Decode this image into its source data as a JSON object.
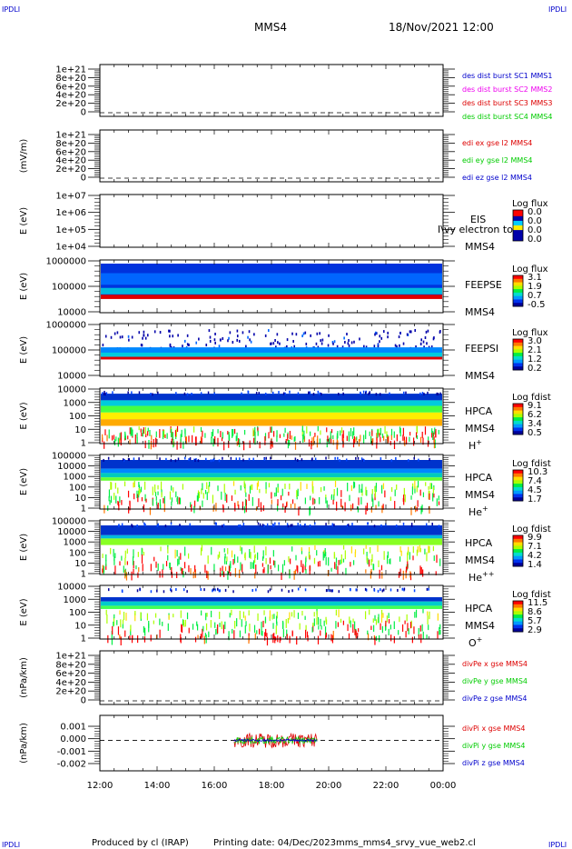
{
  "header": {
    "corner_tl": "IPDLI",
    "corner_tr": "IPDLI",
    "corner_bl": "IPDLI",
    "corner_br": "IPDLI",
    "title": "MMS4",
    "date": "18/Nov/2021 12:00"
  },
  "footer": {
    "produced_by": "Produced by cl (IRAP)",
    "printing_date": "Printing date: 04/Dec/2023",
    "script_name": "mms_mms4_srvy_vue_web2.cl"
  },
  "colors": {
    "red": "#dd0000",
    "green": "#00cc00",
    "blue": "#0000cc",
    "magenta": "#ee00ee"
  },
  "chart_data": {
    "type": "heatmap",
    "x_axis": {
      "tick_labels": [
        "12:00",
        "14:00",
        "16:00",
        "18:00",
        "20:00",
        "22:00",
        "00:00"
      ],
      "range_hours": [
        12,
        24
      ]
    },
    "panels": [
      {
        "id": "p1",
        "type": "line",
        "ylabel": "",
        "ticks": [
          "1e+21",
          "8e+20",
          "6e+20",
          "4e+20",
          "2e+20",
          "0"
        ],
        "legend": [
          {
            "text": "des dist burst SC1 MMS1",
            "color": "#0000cc"
          },
          {
            "text": "des dist burst SC2 MMS2",
            "color": "#ee00ee"
          },
          {
            "text": "des dist burst SC3 MMS3",
            "color": "#dd0000"
          },
          {
            "text": "des dist burst SC4 MMS4",
            "color": "#00cc00"
          }
        ],
        "zero_line": true
      },
      {
        "id": "p2",
        "type": "line",
        "ylabel": "(mV/m)",
        "ticks": [
          "1e+21",
          "8e+20",
          "6e+20",
          "4e+20",
          "2e+20",
          "0"
        ],
        "legend": [
          {
            "text": "edi ex gse l2 MMS4",
            "color": "#dd0000"
          },
          {
            "text": "edi ey gse l2 MMS4",
            "color": "#00cc00"
          },
          {
            "text": "edi ez gse l2 MMS4",
            "color": "#0000cc"
          }
        ],
        "zero_line": true
      },
      {
        "id": "p3",
        "type": "heatmap",
        "ylabel": "E (eV)",
        "ticks": [
          "1e+07",
          "1e+06",
          "1e+05",
          "1e+04"
        ],
        "instrument": "EIS",
        "spacecraft": "MMS4",
        "overlay": "I\\vy electron to",
        "colorbar": {
          "title": "Log flux",
          "values": [
            "0.0",
            "0.0",
            "0.0",
            "0.0"
          ]
        }
      },
      {
        "id": "p4",
        "type": "heatmap",
        "ylabel": "E (eV)",
        "ticks": [
          "1000000",
          "100000",
          "10000"
        ],
        "instrument": "FEEPSE",
        "spacecraft": "MMS4",
        "colorbar": {
          "title": "Log flux",
          "values": [
            "3.1",
            "1.9",
            "0.7",
            "-0.5"
          ]
        }
      },
      {
        "id": "p5",
        "type": "heatmap",
        "ylabel": "E (eV)",
        "ticks": [
          "1000000",
          "100000",
          "10000"
        ],
        "instrument": "FEEPSI",
        "spacecraft": "MMS4",
        "colorbar": {
          "title": "Log flux",
          "values": [
            "3.0",
            "2.1",
            "1.2",
            "0.2"
          ]
        }
      },
      {
        "id": "p6",
        "type": "heatmap",
        "ylabel": "E (eV)",
        "ticks": [
          "10000",
          "1000",
          "100",
          "10",
          "1"
        ],
        "instrument": "HPCA",
        "spacecraft": "MMS4",
        "species": "H",
        "species_sup": "+",
        "colorbar": {
          "title": "Log fdist",
          "values": [
            "9.1",
            "6.2",
            "3.4",
            "0.5"
          ]
        }
      },
      {
        "id": "p7",
        "type": "heatmap",
        "ylabel": "E (eV)",
        "ticks": [
          "100000",
          "10000",
          "1000",
          "100",
          "10",
          "1"
        ],
        "instrument": "HPCA",
        "spacecraft": "MMS4",
        "species": "He",
        "species_sup": "+",
        "colorbar": {
          "title": "Log fdist",
          "values": [
            "10.3",
            "7.4",
            "4.5",
            "1.7"
          ]
        }
      },
      {
        "id": "p8",
        "type": "heatmap",
        "ylabel": "E (eV)",
        "ticks": [
          "100000",
          "10000",
          "1000",
          "100",
          "10",
          "1"
        ],
        "instrument": "HPCA",
        "spacecraft": "MMS4",
        "species": "He",
        "species_sup": "++",
        "colorbar": {
          "title": "Log fdist",
          "values": [
            "9.9",
            "7.1",
            "4.2",
            "1.4"
          ]
        }
      },
      {
        "id": "p9",
        "type": "heatmap",
        "ylabel": "E (eV)",
        "ticks": [
          "10000",
          "1000",
          "100",
          "10",
          "1"
        ],
        "instrument": "HPCA",
        "spacecraft": "MMS4",
        "species": "O",
        "species_sup": "+",
        "colorbar": {
          "title": "Log fdist",
          "values": [
            "11.5",
            "8.6",
            "5.7",
            "2.9"
          ]
        }
      },
      {
        "id": "p10",
        "type": "line",
        "ylabel": "(nPa/km)",
        "ticks": [
          "1e+21",
          "8e+20",
          "6e+20",
          "4e+20",
          "2e+20",
          "0"
        ],
        "legend": [
          {
            "text": "divPe x gse MMS4",
            "color": "#dd0000"
          },
          {
            "text": "divPe y gse MMS4",
            "color": "#00cc00"
          },
          {
            "text": "divPe z gse MMS4",
            "color": "#0000cc"
          }
        ],
        "zero_line": true
      },
      {
        "id": "p11",
        "type": "line",
        "ylabel": "(nPa/km)",
        "ticks": [
          "0.001",
          "0.000",
          "-0.001",
          "-0.002"
        ],
        "legend": [
          {
            "text": "divPi x gse MMS4",
            "color": "#dd0000"
          },
          {
            "text": "divPi y gse MMS4",
            "color": "#00cc00"
          },
          {
            "text": "divPi z gse MMS4",
            "color": "#0000cc"
          }
        ],
        "zero_line": true,
        "data_interval_hours": [
          16.7,
          19.6
        ],
        "series_amplitude": {
          "x": 0.0006,
          "y": 0.0003,
          "z": 0.0001
        }
      }
    ]
  }
}
